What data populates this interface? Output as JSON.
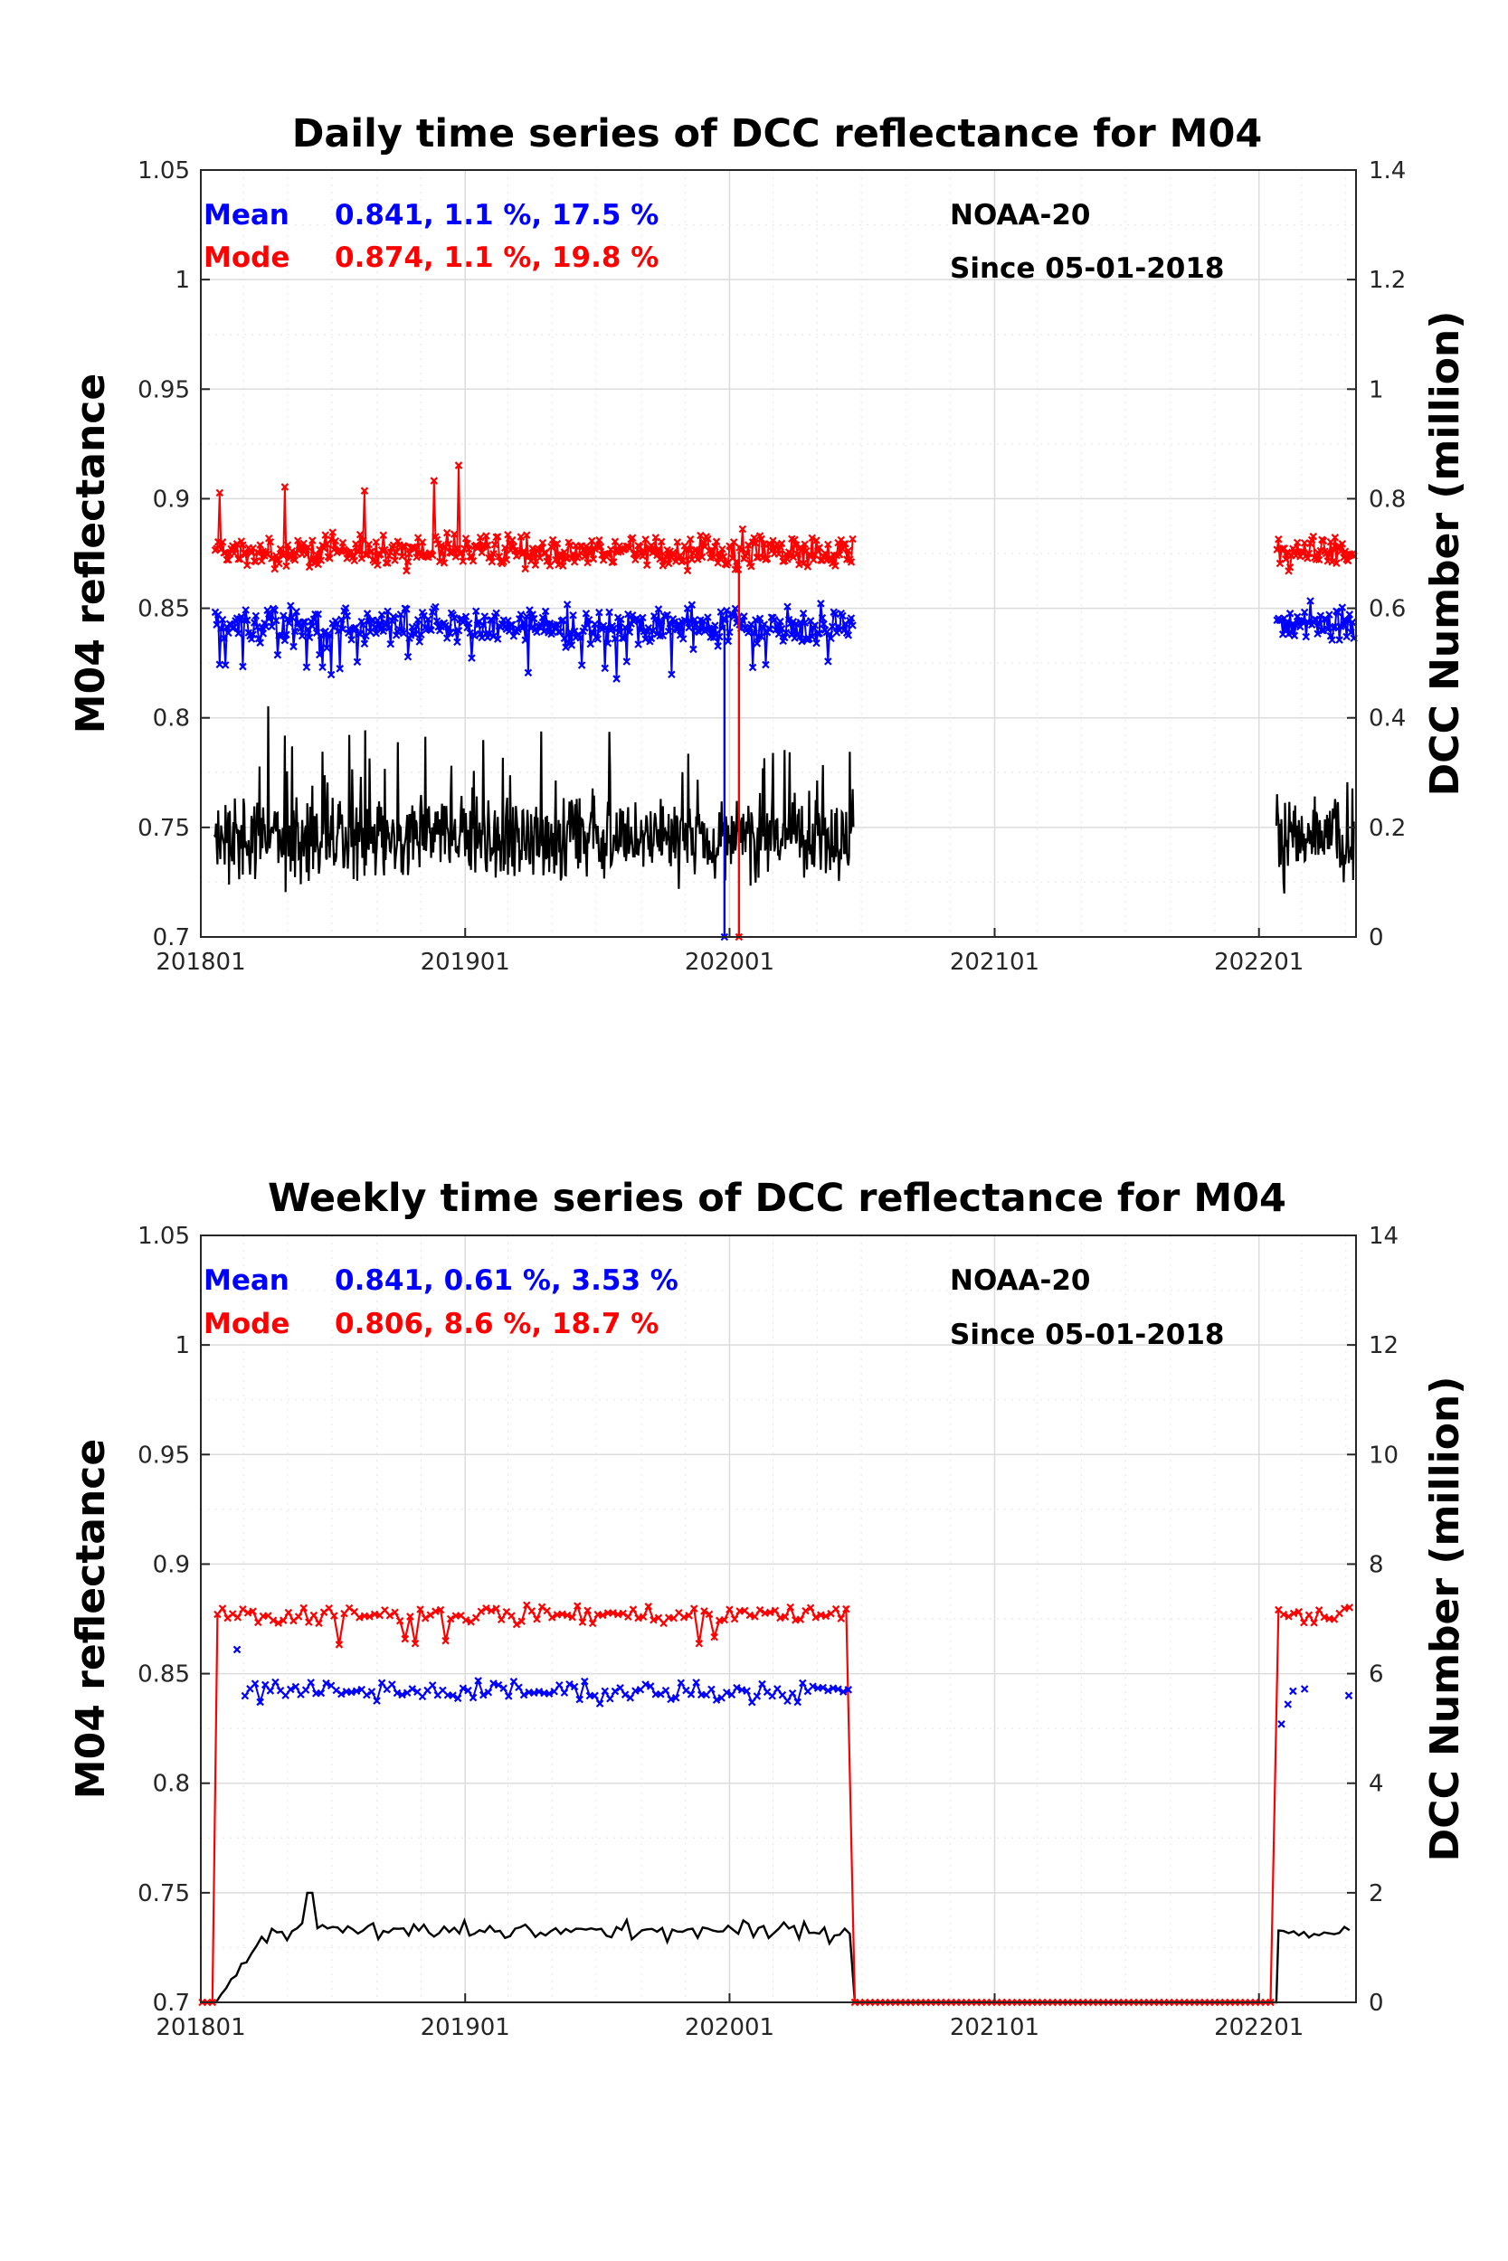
{
  "chart_data": [
    {
      "type": "line",
      "title": "Daily time series of DCC reflectance for M04",
      "ylabel": "M04 reflectance",
      "y2label": "DCC Number (million)",
      "xlim": [
        "2018-01-01",
        "2022-05-15"
      ],
      "x_ticks": [
        "201801",
        "201901",
        "202001",
        "202101",
        "202201"
      ],
      "ylim": [
        0.7,
        1.05
      ],
      "y_ticks": [
        "0.7",
        "0.75",
        "0.8",
        "0.85",
        "0.9",
        "0.95",
        "1",
        "1.05"
      ],
      "y2lim": [
        0,
        1.4
      ],
      "y2_ticks": [
        "0",
        "0.2",
        "0.4",
        "0.6",
        "0.8",
        "1",
        "1.2",
        "1.4"
      ],
      "grid": true,
      "colors": {
        "mean": "#0000ff",
        "mode": "#ff0000",
        "count": "#000000"
      },
      "annotations": {
        "mean_label": "Mean",
        "mean_stats": "0.841, 1.1 %, 17.5 %",
        "mode_label": "Mode",
        "mode_stats": "0.874, 1.1 %, 19.8 %",
        "satellite": "NOAA-20",
        "since": "Since 05-01-2018"
      },
      "segments": [
        {
          "start": "2018-01-20",
          "end": "2020-06-20"
        },
        {
          "start": "2022-01-25",
          "end": "2022-05-12"
        }
      ],
      "series": [
        {
          "name": "Mean",
          "axis": "left",
          "marker": "x",
          "typical": 0.842,
          "range": [
            0.81,
            0.875
          ],
          "anomalies": [
            {
              "x": "2019-12-25",
              "y": 0.7
            }
          ]
        },
        {
          "name": "Mode",
          "axis": "left",
          "marker": "x",
          "typical": 0.876,
          "range": [
            0.855,
            0.918
          ],
          "anomalies": [
            {
              "x": "2020-01-14",
              "y": 0.7
            }
          ]
        },
        {
          "name": "DCC Number",
          "axis": "right",
          "marker": "none",
          "typical": 0.18,
          "range": [
            0.0,
            0.45
          ]
        }
      ]
    },
    {
      "type": "line",
      "title": "Weekly time series of DCC reflectance for M04",
      "ylabel": "M04 reflectance",
      "y2label": "DCC Number (million)",
      "xlim": [
        "2018-01-01",
        "2022-05-15"
      ],
      "x_ticks": [
        "201801",
        "201901",
        "202001",
        "202101",
        "202201"
      ],
      "ylim": [
        0.7,
        1.05
      ],
      "y_ticks": [
        "0.7",
        "0.75",
        "0.8",
        "0.85",
        "0.9",
        "0.95",
        "1",
        "1.05"
      ],
      "y2lim": [
        0,
        14
      ],
      "y2_ticks": [
        "0",
        "2",
        "4",
        "6",
        "8",
        "10",
        "12",
        "14"
      ],
      "grid": true,
      "colors": {
        "mean": "#0000ff",
        "mode": "#ff0000",
        "count": "#000000"
      },
      "annotations": {
        "mean_label": "Mean",
        "mean_stats": "0.841, 0.61 %, 3.53 %",
        "mode_label": "Mode",
        "mode_stats": "0.806, 8.6 %, 18.7 %",
        "satellite": "NOAA-20",
        "since": "Since 05-01-2018"
      },
      "series": [
        {
          "name": "Mean",
          "axis": "left",
          "marker": "x",
          "typical": 0.842,
          "range": [
            0.818,
            0.862
          ],
          "late_points": [
            {
              "x": "2022-02-01",
              "y": 0.827
            },
            {
              "x": "2022-02-10",
              "y": 0.836
            },
            {
              "x": "2022-02-17",
              "y": 0.842
            },
            {
              "x": "2022-03-05",
              "y": 0.843
            },
            {
              "x": "2022-05-05",
              "y": 0.84
            }
          ]
        },
        {
          "name": "Mode",
          "axis": "left",
          "marker": "x",
          "typical": 0.877,
          "range": [
            0.858,
            0.89
          ],
          "zero_runs": [
            {
              "start": "2018-01-01",
              "end": "2018-01-20",
              "y": 0.7
            },
            {
              "start": "2020-06-22",
              "end": "2022-01-20",
              "y": 0.7
            }
          ]
        },
        {
          "name": "DCC Number",
          "axis": "right",
          "marker": "none",
          "typical": 1.3,
          "range": [
            0.0,
            2.0
          ],
          "peak": {
            "x": "2018-06-01",
            "y": 2.0
          }
        }
      ]
    }
  ]
}
